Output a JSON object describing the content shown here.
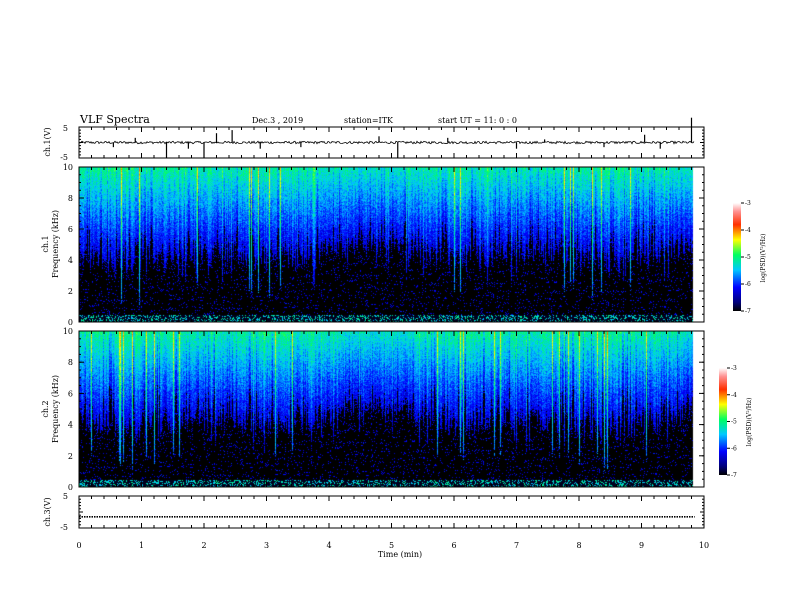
{
  "header": {
    "title": "VLF Spectra",
    "date": "Dec.3 , 2019",
    "station": "station=ITK",
    "start": "start UT = 11: 0 : 0"
  },
  "chart_data": [
    {
      "type": "line",
      "panel": "ch1-waveform",
      "ylabel": "ch.1(V)",
      "ylim": [
        -5,
        5
      ],
      "yticks": [
        "5",
        "-5"
      ],
      "x_unit": "min",
      "xlim": [
        0,
        10
      ],
      "baseline": 0,
      "noise_amplitude": 0.4,
      "spikes": [
        {
          "x": 0.55,
          "y": -1.5
        },
        {
          "x": 0.9,
          "y": 1.5
        },
        {
          "x": 1.4,
          "y": -5
        },
        {
          "x": 1.75,
          "y": -2
        },
        {
          "x": 2.0,
          "y": -5
        },
        {
          "x": 2.2,
          "y": 3
        },
        {
          "x": 2.45,
          "y": 4
        },
        {
          "x": 2.9,
          "y": -2
        },
        {
          "x": 3.55,
          "y": -1.5
        },
        {
          "x": 4.8,
          "y": 2
        },
        {
          "x": 5.1,
          "y": -5
        },
        {
          "x": 5.9,
          "y": 1.5
        },
        {
          "x": 7.0,
          "y": -2
        },
        {
          "x": 7.45,
          "y": 1
        },
        {
          "x": 8.4,
          "y": -1.5
        },
        {
          "x": 9.05,
          "y": 2.5
        },
        {
          "x": 9.3,
          "y": -2
        },
        {
          "x": 9.8,
          "y": 8
        }
      ]
    },
    {
      "type": "heatmap",
      "panel": "ch1-spectrogram",
      "ylabel": "ch.1",
      "ylabel2": "Frequency (kHz)",
      "ylim": [
        0,
        10
      ],
      "yticks": [
        "0",
        "2",
        "4",
        "6",
        "8",
        "10"
      ],
      "xlim": [
        0,
        10
      ],
      "colorbar": {
        "label": "log(PSD)(V²/Hz)",
        "range": [
          -7,
          -3
        ],
        "ticks": [
          "-3",
          "-4",
          "-5",
          "-6",
          "-7"
        ]
      }
    },
    {
      "type": "heatmap",
      "panel": "ch2-spectrogram",
      "ylabel": "ch.2",
      "ylabel2": "Frequency (kHz)",
      "ylim": [
        0,
        10
      ],
      "yticks": [
        "0",
        "2",
        "4",
        "6",
        "8",
        "10"
      ],
      "xlim": [
        0,
        10
      ],
      "colorbar": {
        "label": "log(PSD)(V²/Hz)",
        "range": [
          -7,
          -3
        ],
        "ticks": [
          "-3",
          "-4",
          "-5",
          "-6",
          "-7"
        ]
      }
    },
    {
      "type": "line",
      "panel": "ch3-waveform",
      "ylabel": "ch.3(V)",
      "ylim": [
        -5,
        5
      ],
      "yticks": [
        "5",
        "-5"
      ],
      "xlim": [
        0,
        10
      ],
      "baseline": -1.5
    }
  ],
  "x_axis": {
    "label": "Time (min)",
    "ticks": [
      "0",
      "1",
      "2",
      "3",
      "4",
      "5",
      "6",
      "7",
      "8",
      "9",
      "10"
    ]
  },
  "colors": {
    "frame": "#000000",
    "background": "#ffffff"
  }
}
